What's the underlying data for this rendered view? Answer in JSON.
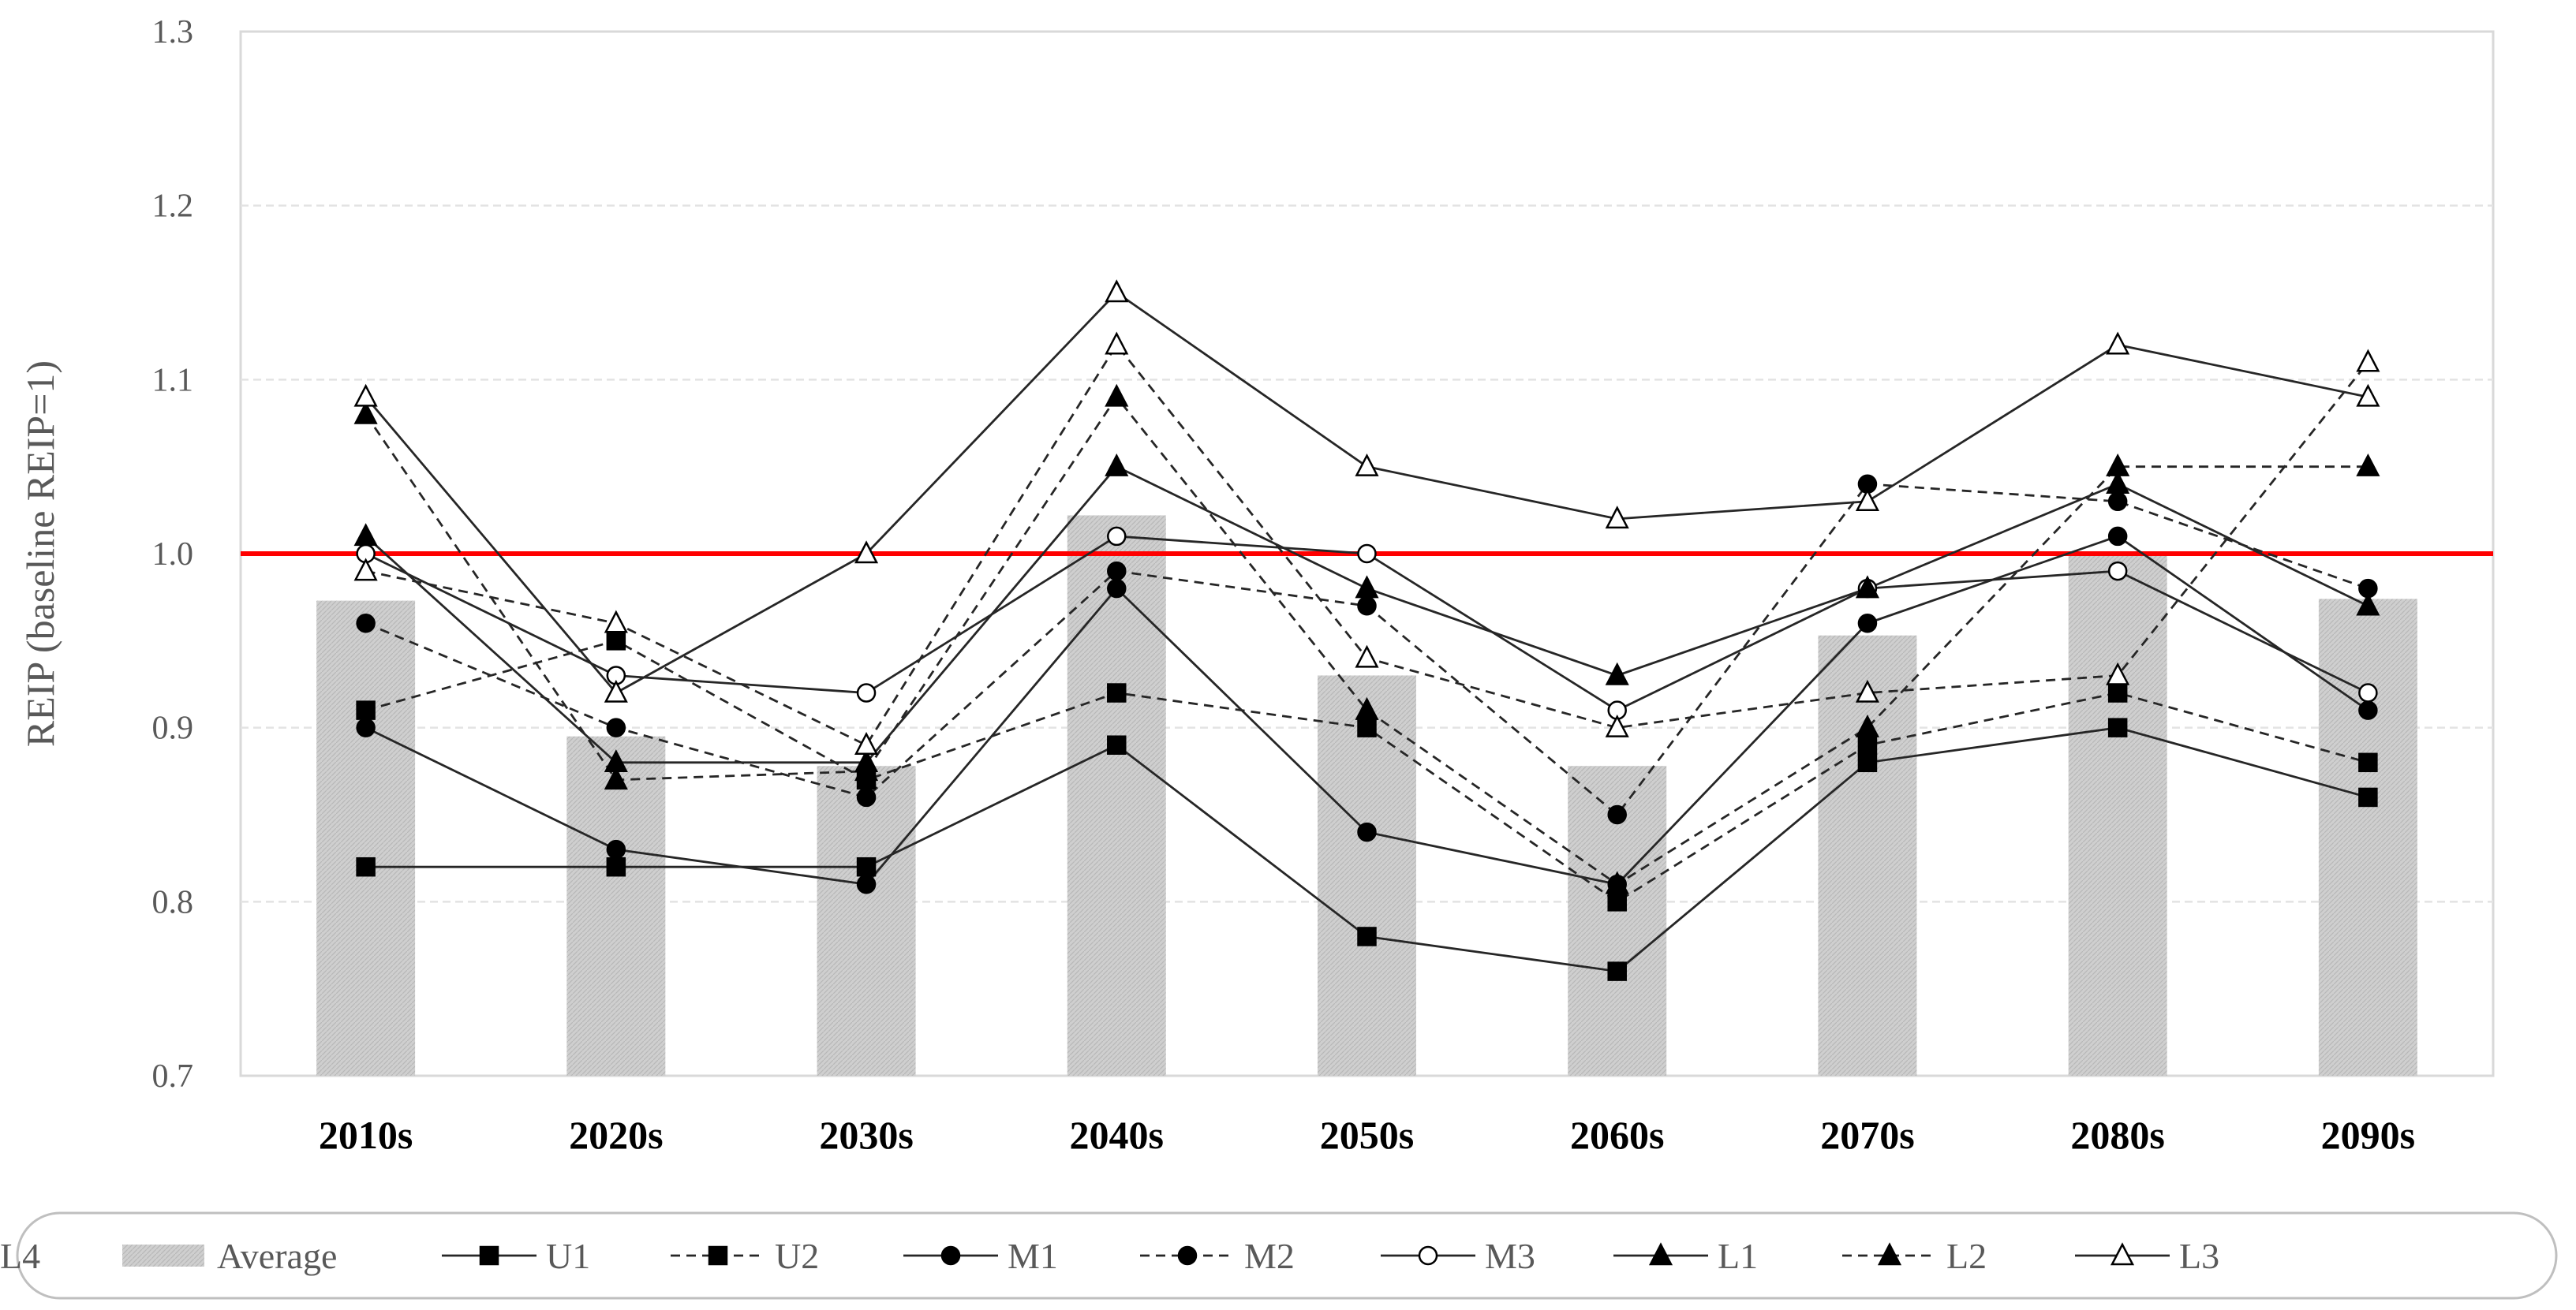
{
  "chart_data": {
    "type": "bar+line",
    "title": "",
    "xlabel": "",
    "ylabel": "REIP (baseline REIP=1)",
    "ylim": [
      0.7,
      1.3
    ],
    "yticks": [
      "0.7",
      "0.8",
      "0.9",
      "1.0",
      "1.1",
      "1.2",
      "1.3"
    ],
    "categories": [
      "2010s",
      "2020s",
      "2030s",
      "2040s",
      "2050s",
      "2060s",
      "2070s",
      "2080s",
      "2090s"
    ],
    "reference_line": {
      "value": 1.0,
      "color": "#ff0000"
    },
    "bar_series": {
      "name": "Average",
      "values": [
        0.973,
        0.895,
        0.878,
        1.022,
        0.93,
        0.878,
        0.953,
        1.0,
        0.974
      ],
      "color": "#d0d0d0"
    },
    "series": [
      {
        "name": "U1",
        "marker": "square",
        "filled": true,
        "dashed": false,
        "values": [
          0.82,
          0.82,
          0.82,
          0.89,
          0.78,
          0.76,
          0.88,
          0.9,
          0.86
        ]
      },
      {
        "name": "U2",
        "marker": "square",
        "filled": true,
        "dashed": true,
        "values": [
          0.91,
          0.95,
          0.87,
          0.92,
          0.9,
          0.8,
          0.89,
          0.92,
          0.88
        ]
      },
      {
        "name": "M1",
        "marker": "circle",
        "filled": true,
        "dashed": false,
        "values": [
          0.9,
          0.83,
          0.81,
          0.98,
          0.84,
          0.81,
          0.96,
          1.01,
          0.91
        ]
      },
      {
        "name": "M2",
        "marker": "circle",
        "filled": true,
        "dashed": true,
        "values": [
          0.96,
          0.9,
          0.86,
          0.99,
          0.97,
          0.85,
          1.04,
          1.03,
          0.98
        ]
      },
      {
        "name": "M3",
        "marker": "circle",
        "filled": false,
        "dashed": false,
        "values": [
          1.0,
          0.93,
          0.92,
          1.01,
          1.0,
          0.91,
          0.98,
          0.99,
          0.92
        ]
      },
      {
        "name": "L1",
        "marker": "triangle",
        "filled": true,
        "dashed": false,
        "values": [
          1.01,
          0.88,
          0.88,
          1.05,
          0.98,
          0.93,
          0.98,
          1.04,
          0.97
        ]
      },
      {
        "name": "L2",
        "marker": "triangle",
        "filled": true,
        "dashed": true,
        "values": [
          1.08,
          0.87,
          0.875,
          1.09,
          0.91,
          0.81,
          0.9,
          1.05,
          1.05
        ]
      },
      {
        "name": "L3",
        "marker": "triangle",
        "filled": false,
        "dashed": false,
        "values": [
          1.09,
          0.92,
          1.0,
          1.15,
          1.05,
          1.02,
          1.03,
          1.12,
          1.09
        ]
      },
      {
        "name": "L4",
        "marker": "triangle",
        "filled": false,
        "dashed": true,
        "values": [
          0.99,
          0.96,
          0.89,
          1.12,
          0.94,
          0.9,
          0.92,
          0.93,
          1.11
        ]
      }
    ]
  }
}
